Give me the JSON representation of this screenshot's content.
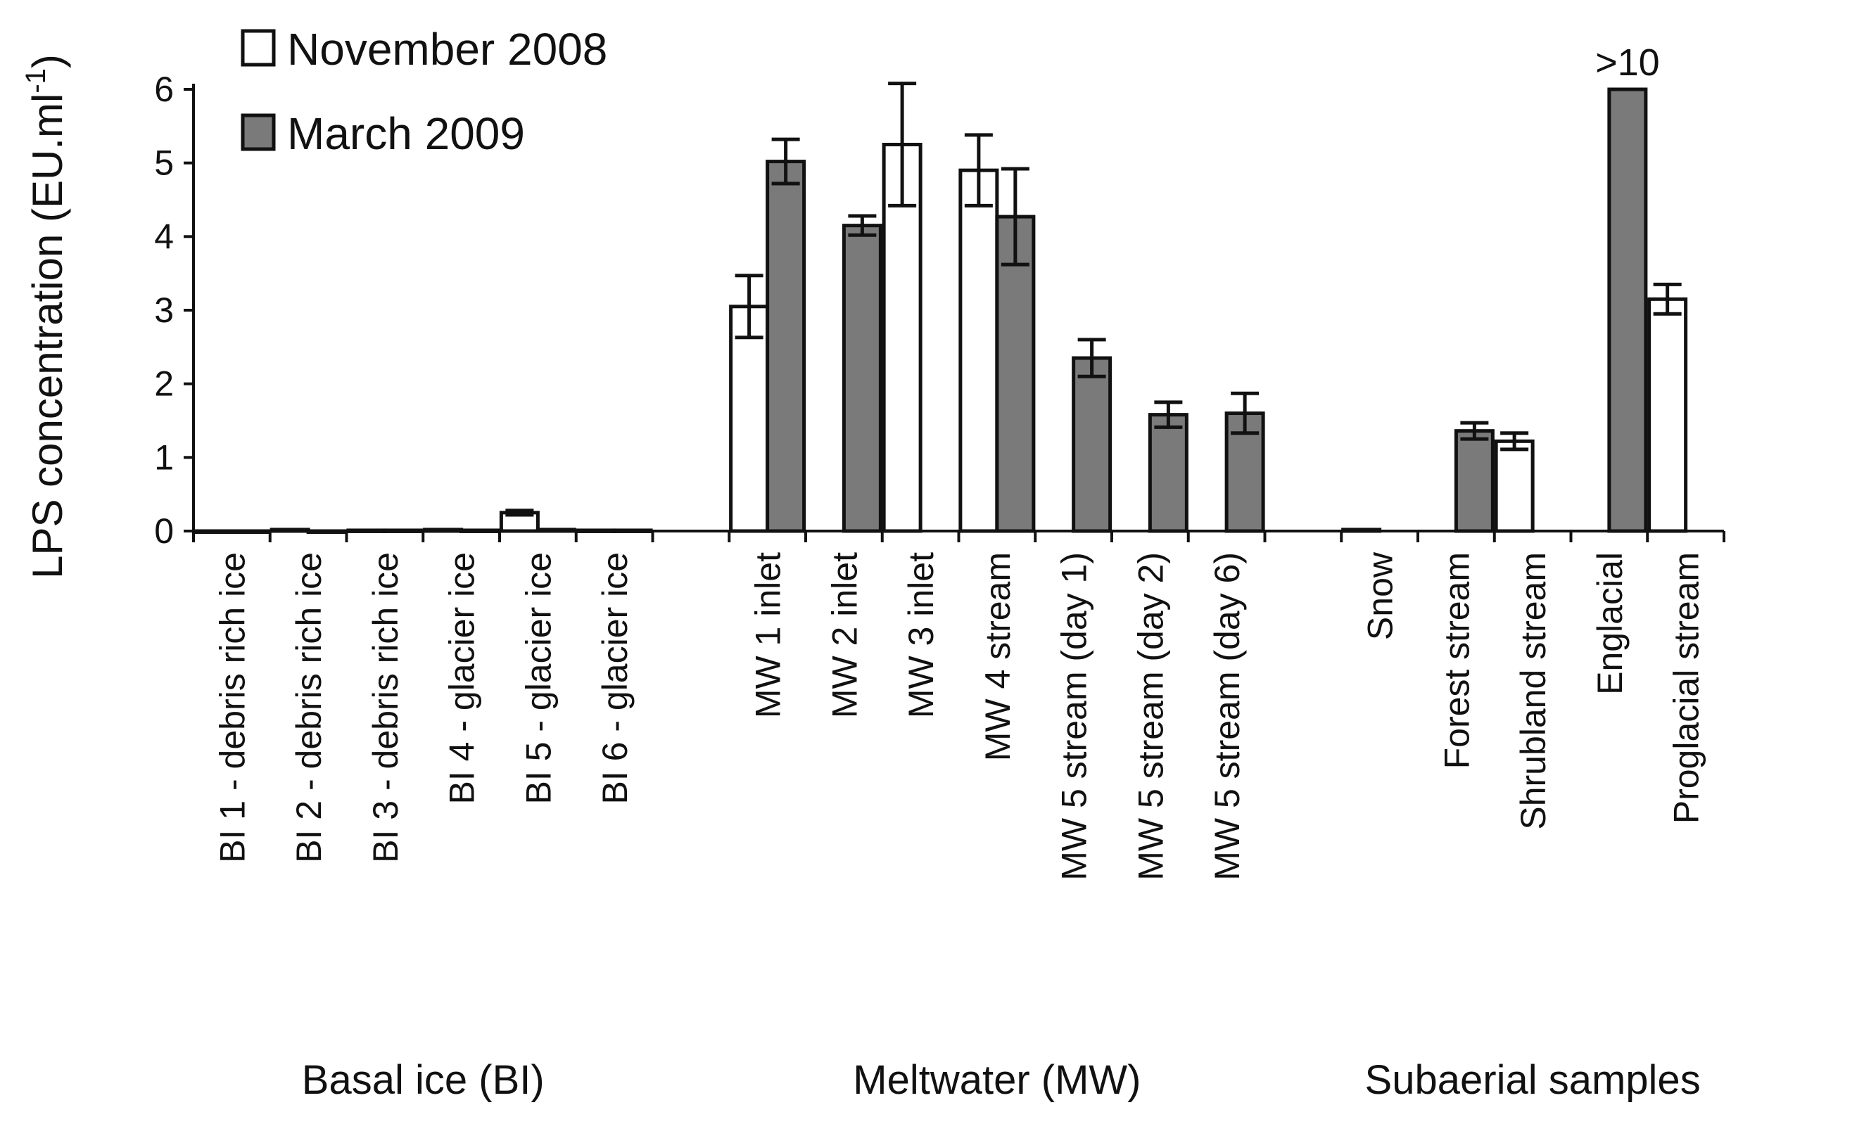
{
  "chart_data": {
    "type": "bar",
    "ylabel": "LPS concentration (EU.ml",
    "ylabel_superscript": "-1",
    "ylabel_close": ")",
    "ylim": [
      0,
      6
    ],
    "yticks": [
      0,
      1,
      2,
      3,
      4,
      5,
      6
    ],
    "grid": false,
    "legend_position": "top-left",
    "colors": {
      "November 2008": "#ffffff",
      "March 2009": "#7a7a7a",
      "outline": "#111111"
    },
    "series": [
      {
        "name": "November 2008"
      },
      {
        "name": "March 2009"
      }
    ],
    "slots": [
      {
        "label": "BI 1 - debris rich ice",
        "nov": 0.0,
        "nov_err": 0.0,
        "mar": 0.0,
        "mar_err": 0.0
      },
      {
        "label": "BI 2 - debris rich ice",
        "nov": 0.02,
        "nov_err": 0.0,
        "mar": 0.0,
        "mar_err": 0.0
      },
      {
        "label": "BI 3 - debris rich ice",
        "nov": 0.01,
        "nov_err": 0.0,
        "mar": 0.01,
        "mar_err": 0.0
      },
      {
        "label": "BI 4 - glacier ice",
        "nov": 0.02,
        "nov_err": 0.0,
        "mar": 0.01,
        "mar_err": 0.0
      },
      {
        "label": "BI 5 - glacier ice",
        "nov": 0.25,
        "nov_err": 0.03,
        "mar": 0.02,
        "mar_err": 0.0
      },
      {
        "label": "BI 6 - glacier ice",
        "nov": 0.01,
        "nov_err": 0.0,
        "mar": 0.01,
        "mar_err": 0.0
      },
      {
        "label": "",
        "gap": true
      },
      {
        "label": "MW 1 inlet",
        "nov": 3.05,
        "nov_err": 0.42,
        "mar": 5.02,
        "mar_err": 0.3
      },
      {
        "label": "MW 2 inlet",
        "nov": null,
        "mar": 4.15,
        "mar_err": 0.13
      },
      {
        "label": "MW 3 inlet",
        "nov": 5.25,
        "nov_err": 0.83,
        "mar": null
      },
      {
        "label": "MW 4 stream",
        "nov": 4.9,
        "nov_err": 0.48,
        "mar": 4.27,
        "mar_err": 0.65
      },
      {
        "label": "MW 5 stream (day 1)",
        "nov": null,
        "mar": 2.35,
        "mar_err": 0.25
      },
      {
        "label": "MW 5 stream (day 2)",
        "nov": null,
        "mar": 1.58,
        "mar_err": 0.17
      },
      {
        "label": "MW 5 stream (day 6)",
        "nov": null,
        "mar": 1.6,
        "mar_err": 0.27
      },
      {
        "label": "",
        "gap": true
      },
      {
        "label": "Snow",
        "nov": 0.02,
        "nov_err": 0.0,
        "mar": null
      },
      {
        "label": "Forest stream",
        "nov": null,
        "mar": 1.36,
        "mar_err": 0.11
      },
      {
        "label": "Shrubland stream",
        "nov": 1.22,
        "nov_err": 0.11,
        "mar": null
      },
      {
        "label": "Englacial",
        "nov": null,
        "mar": 6.0,
        "mar_err": 0.0,
        "annotation": ">10"
      },
      {
        "label": "Proglacial stream",
        "nov": 3.15,
        "nov_err": 0.2,
        "mar": null
      }
    ],
    "groups": [
      {
        "label": "Basal ice (BI)",
        "from": 0,
        "to": 5
      },
      {
        "label": "Meltwater (MW)",
        "from": 7,
        "to": 13
      },
      {
        "label": "Subaerial samples",
        "from": 15,
        "to": 19
      }
    ]
  }
}
